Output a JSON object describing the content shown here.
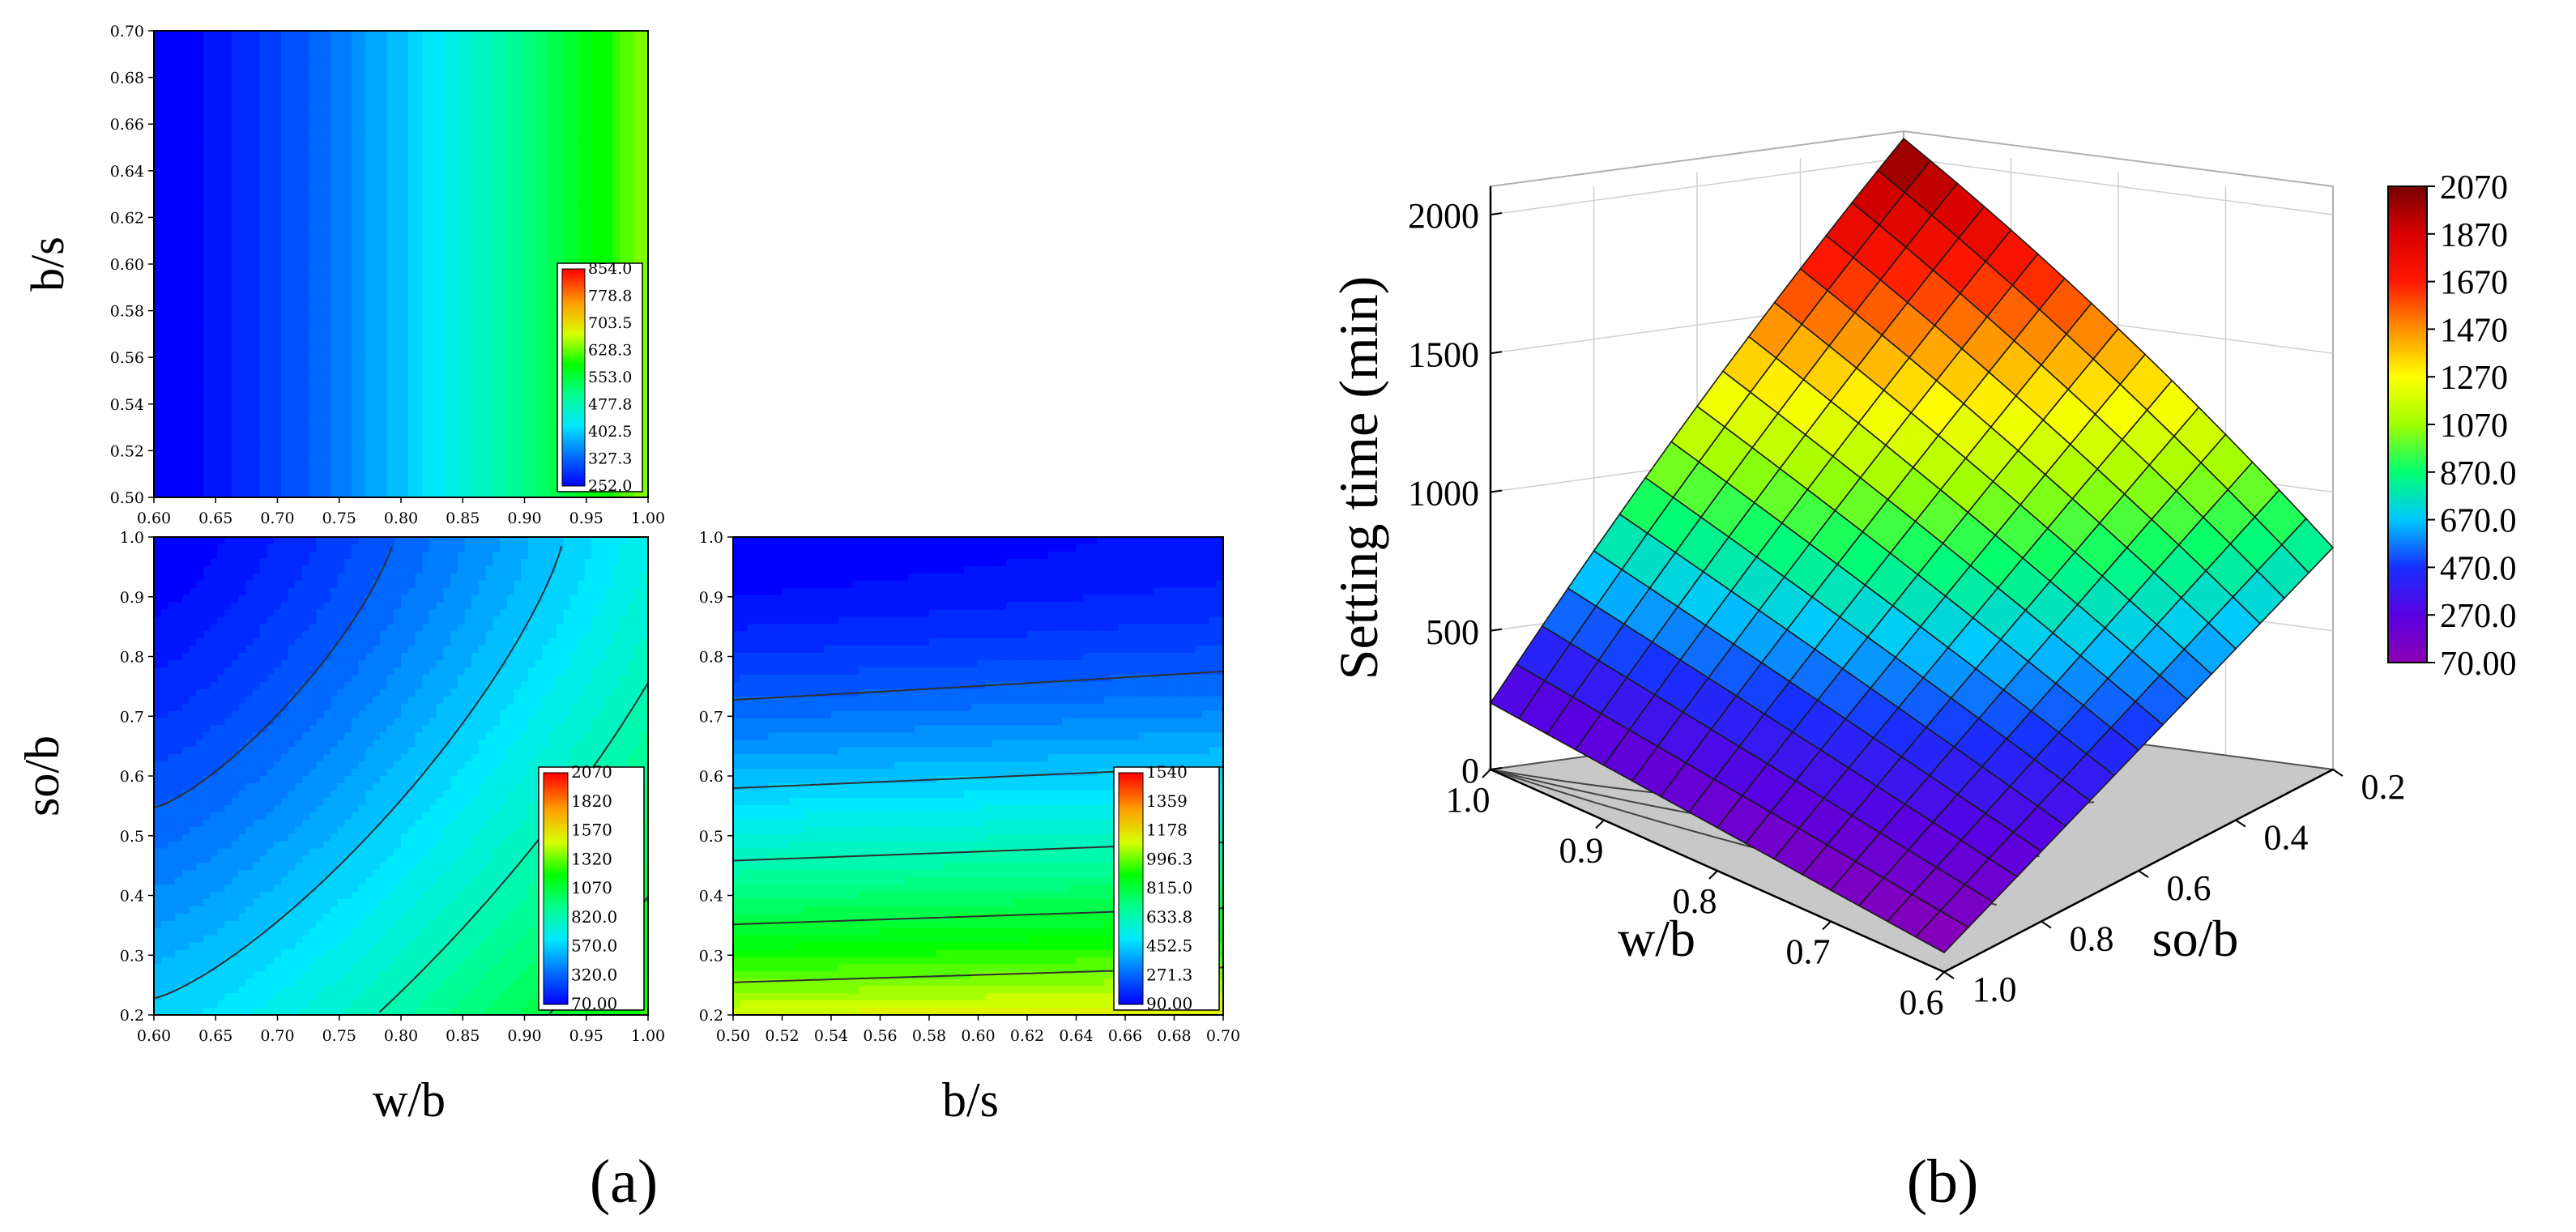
{
  "panels": {
    "a_label": "(a)",
    "b_label": "(b)"
  },
  "chart_data": [
    {
      "type": "heatmap",
      "id": "contour-top",
      "title": "",
      "xlabel": "",
      "ylabel": "b/s",
      "xlim": [
        0.6,
        1.0
      ],
      "ylim": [
        0.5,
        0.7
      ],
      "x_ticks": [
        "0.60",
        "0.65",
        "0.70",
        "0.75",
        "0.80",
        "0.85",
        "0.90",
        "0.95",
        "1.00"
      ],
      "y_ticks": [
        "0.50",
        "0.52",
        "0.54",
        "0.56",
        "0.58",
        "0.60",
        "0.62",
        "0.64",
        "0.66",
        "0.68",
        "0.70"
      ],
      "z_range": [
        252.0,
        854.0
      ],
      "colorbar_ticks": [
        "854.0",
        "778.8",
        "703.5",
        "628.3",
        "553.0",
        "477.8",
        "402.5",
        "327.3",
        "252.0"
      ],
      "surface": {
        "c": 252,
        "a": 1400,
        "b": 1000,
        "i": 0.6,
        "j": 0.5,
        "p1": 1.4,
        "p2": 1.0,
        "zmin": 252.0,
        "zmax": 854.0
      }
    },
    {
      "type": "heatmap",
      "id": "contour-bottom-left",
      "title": "",
      "xlabel": "w/b",
      "ylabel": "so/b",
      "xlim": [
        0.6,
        1.0
      ],
      "ylim": [
        0.2,
        1.0
      ],
      "x_ticks": [
        "0.60",
        "0.65",
        "0.70",
        "0.75",
        "0.80",
        "0.85",
        "0.90",
        "0.95",
        "1.00"
      ],
      "y_ticks": [
        "0.2",
        "0.3",
        "0.4",
        "0.5",
        "0.6",
        "0.7",
        "0.8",
        "0.9",
        "1.0"
      ],
      "z_range": [
        70.0,
        2070
      ],
      "colorbar_ticks": [
        "2070",
        "1820",
        "1570",
        "1320",
        "1070",
        "820.0",
        "570.0",
        "320.0",
        "70.00"
      ],
      "surface": {
        "c": 70,
        "a": 2100,
        "b": 700,
        "i": 0.6,
        "j": 1.0,
        "p1": 1.3,
        "p2": 1.3,
        "zmin": 70.0,
        "zmax": 2070.0
      }
    },
    {
      "type": "heatmap",
      "id": "contour-bottom-right",
      "title": "",
      "xlabel": "b/s",
      "ylabel": "",
      "xlim": [
        0.5,
        0.7
      ],
      "ylim": [
        0.2,
        1.0
      ],
      "x_ticks": [
        "0.50",
        "0.52",
        "0.54",
        "0.56",
        "0.58",
        "0.60",
        "0.62",
        "0.64",
        "0.66",
        "0.68",
        "0.70"
      ],
      "y_ticks": [
        "0.2",
        "0.3",
        "0.4",
        "0.5",
        "0.6",
        "0.7",
        "0.8",
        "0.9",
        "1.0"
      ],
      "z_range": [
        90.0,
        1540
      ],
      "colorbar_ticks": [
        "1540",
        "1359",
        "1178",
        "996.3",
        "815.0",
        "633.8",
        "452.5",
        "271.3",
        "90.00"
      ],
      "surface": {
        "c": 90,
        "a": 240,
        "b": 1450,
        "i": 0.5,
        "j": 1.0,
        "p1": 1.0,
        "p2": 1.6,
        "zmin": 90.0,
        "zmax": 1540.0
      }
    },
    {
      "type": "surface3d",
      "id": "surface-3d",
      "title": "",
      "zlabel": "Setting time (min)",
      "xlabel": "w/b",
      "ylabel": "so/b",
      "xlim": [
        0.6,
        1.0
      ],
      "ylim": [
        0.2,
        1.0
      ],
      "zlim": [
        0,
        2100
      ],
      "z_ticks": [
        "0",
        "500",
        "1000",
        "1500",
        "2000"
      ],
      "x_ticks": [
        "1.0",
        "0.9",
        "0.8",
        "0.7",
        "0.6"
      ],
      "y_ticks": [
        "0.2",
        "0.4",
        "0.6",
        "0.8",
        "1.0"
      ],
      "corner_values": {
        "w1_so1": 240,
        "w1_so02": 2070,
        "w06_so1": 70,
        "w06_so02": 800
      },
      "colorbar_range": [
        70.0,
        2070
      ],
      "colorbar_ticks": [
        "2070",
        "1870",
        "1670",
        "1470",
        "1270",
        "1070",
        "870.0",
        "670.0",
        "470.0",
        "270.0",
        "70.00"
      ]
    }
  ]
}
